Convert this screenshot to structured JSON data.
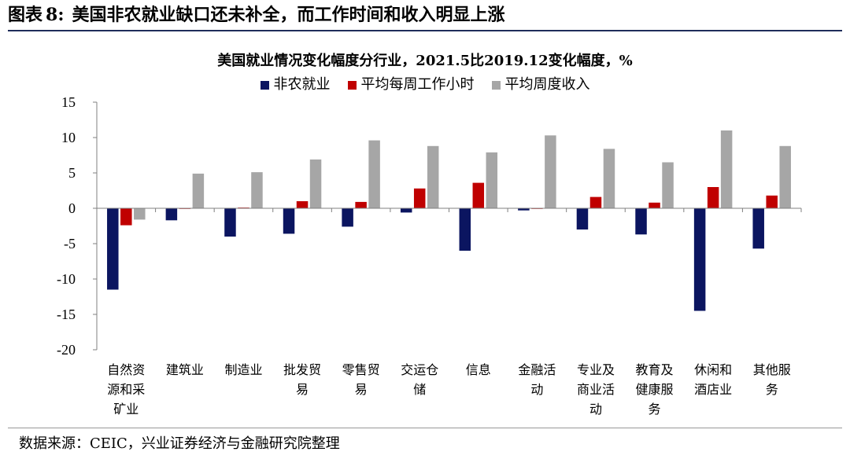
{
  "header": {
    "label": "图表",
    "number": "8:",
    "description": "美国非农就业缺口还未补全，而工作时间和收入明显上涨"
  },
  "source": {
    "text": "数据来源：CEIC，兴业证券经济与金融研究院整理"
  },
  "chart_data": {
    "type": "bar",
    "title": "美国就业情况变化幅度分行业，2021.5比2019.12变化幅度，%",
    "xlabel": "",
    "ylabel": "",
    "ylim": [
      -20,
      15
    ],
    "yticks": [
      15,
      10,
      5,
      0,
      -5,
      -10,
      -15,
      -20
    ],
    "grid": false,
    "legend_position": "top-center",
    "categories": [
      [
        "自然资",
        "源和采",
        "矿业"
      ],
      [
        "建筑业"
      ],
      [
        "制造业"
      ],
      [
        "批发贸",
        "易"
      ],
      [
        "零售贸",
        "易"
      ],
      [
        "交运仓",
        "储"
      ],
      [
        "信息"
      ],
      [
        "金融活",
        "动"
      ],
      [
        "专业及",
        "商业活",
        "动"
      ],
      [
        "教育及",
        "健康服",
        "务"
      ],
      [
        "休闲和",
        "酒店业"
      ],
      [
        "其他服",
        "务"
      ]
    ],
    "series": [
      {
        "name": "非农就业",
        "color": "#0b1560",
        "values": [
          -11.5,
          -1.7,
          -4.0,
          -3.6,
          -2.6,
          -0.6,
          -6.0,
          -0.3,
          -3.0,
          -3.7,
          -14.5,
          -5.7
        ]
      },
      {
        "name": "平均每周工作小时",
        "color": "#c00000",
        "values": [
          -2.4,
          0.0,
          0.1,
          1.0,
          0.9,
          2.8,
          3.6,
          0.0,
          1.6,
          0.8,
          3.0,
          1.8
        ]
      },
      {
        "name": "平均周度收入",
        "color": "#a6a6a6",
        "values": [
          -1.6,
          4.9,
          5.1,
          6.9,
          9.6,
          8.8,
          7.9,
          10.3,
          8.4,
          6.5,
          11.0,
          8.8
        ]
      }
    ]
  }
}
